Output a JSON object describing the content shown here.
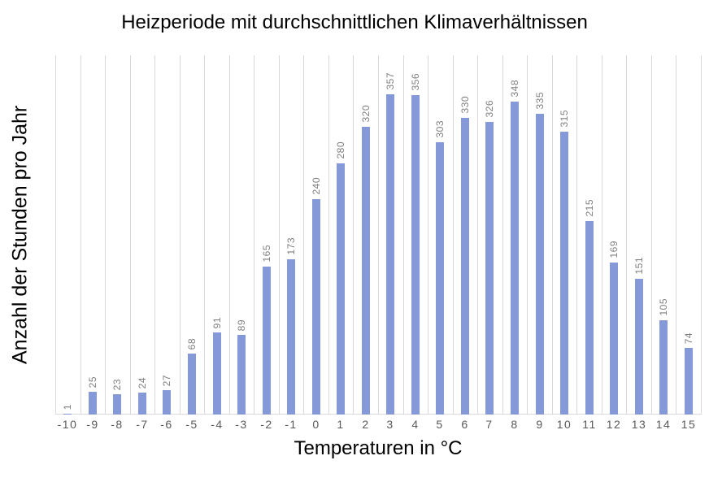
{
  "chart_data": {
    "type": "bar",
    "title": "Heizperiode mit durchschnittlichen Klimaverhältnissen",
    "xlabel": "Temperaturen in °C",
    "ylabel": "Anzahl der Stunden pro Jahr",
    "categories": [
      "-10",
      "-9",
      "-8",
      "-7",
      "-6",
      "-5",
      "-4",
      "-3",
      "-2",
      "-1",
      "0",
      "1",
      "2",
      "3",
      "4",
      "5",
      "6",
      "7",
      "8",
      "9",
      "10",
      "11",
      "12",
      "13",
      "14",
      "15"
    ],
    "values": [
      1,
      25,
      23,
      24,
      27,
      68,
      91,
      89,
      165,
      173,
      240,
      280,
      320,
      357,
      356,
      303,
      330,
      326,
      348,
      335,
      315,
      215,
      169,
      151,
      105,
      74
    ],
    "ylim": [
      0,
      400
    ],
    "grid": "vertical-only",
    "legend": "none",
    "data_labels": "rotated-90-above-bars",
    "colors": {
      "bar": "#8599D9",
      "gridline": "#D9D9D9",
      "baseline": "#D9D9D9",
      "value_label": "#7F7F7F",
      "tick_label": "#595959",
      "title": "#000000",
      "axis_title": "#000000"
    }
  }
}
